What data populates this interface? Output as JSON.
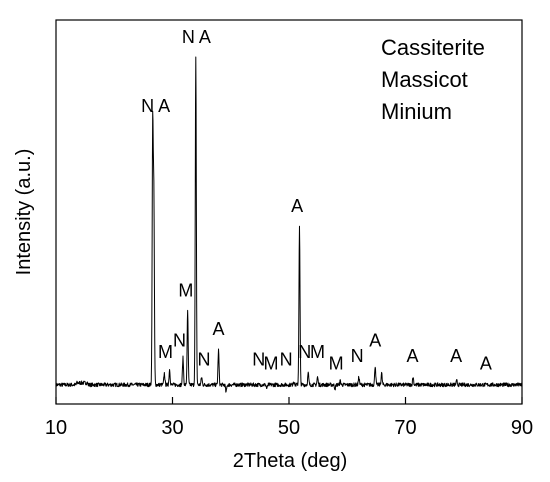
{
  "chart_data": {
    "type": "line",
    "xlabel": "2Theta (deg)",
    "ylabel": "Intensity (a.u.)",
    "xlim": [
      10,
      90
    ],
    "ylim": [
      0,
      100
    ],
    "xticks": [
      10,
      30,
      50,
      70,
      90
    ],
    "grid": false,
    "legend_position": "top-right",
    "legend_entries": [
      "Cassiterite",
      "Massicot",
      "Minium"
    ],
    "baseline": 5,
    "series": [
      {
        "name": "",
        "peaks": [
          [
            26.6,
            72
          ],
          [
            26.8,
            52
          ],
          [
            28.6,
            8
          ],
          [
            29.5,
            9
          ],
          [
            31.8,
            12
          ],
          [
            32.6,
            24
          ],
          [
            34.0,
            90
          ],
          [
            35.0,
            7
          ],
          [
            37.9,
            14
          ],
          [
            39.2,
            3
          ],
          [
            44.6,
            5
          ],
          [
            46.2,
            4
          ],
          [
            49.3,
            5
          ],
          [
            50.8,
            6
          ],
          [
            51.8,
            46
          ],
          [
            52.8,
            5
          ],
          [
            53.3,
            8
          ],
          [
            54.9,
            7
          ],
          [
            57.9,
            4
          ],
          [
            58.8,
            6
          ],
          [
            62.0,
            7
          ],
          [
            64.8,
            10
          ],
          [
            65.9,
            8
          ],
          [
            71.3,
            7
          ],
          [
            78.8,
            6
          ],
          [
            83.9,
            5
          ]
        ]
      }
    ],
    "annotations": [
      {
        "label": "N A",
        "x": 27.1,
        "y": 76
      },
      {
        "label": "N A",
        "x": 34.1,
        "y": 94
      },
      {
        "label": "M",
        "x": 28.8,
        "y": 12
      },
      {
        "label": "N",
        "x": 31.2,
        "y": 15
      },
      {
        "label": "M",
        "x": 32.3,
        "y": 28
      },
      {
        "label": "N",
        "x": 35.4,
        "y": 10
      },
      {
        "label": "A",
        "x": 37.9,
        "y": 18
      },
      {
        "label": "N",
        "x": 44.8,
        "y": 10
      },
      {
        "label": "M",
        "x": 46.9,
        "y": 9
      },
      {
        "label": "N",
        "x": 49.5,
        "y": 10
      },
      {
        "label": "A",
        "x": 51.4,
        "y": 50
      },
      {
        "label": "N",
        "x": 52.7,
        "y": 12
      },
      {
        "label": "M",
        "x": 54.9,
        "y": 12
      },
      {
        "label": "M",
        "x": 58.1,
        "y": 9
      },
      {
        "label": "N",
        "x": 61.7,
        "y": 11
      },
      {
        "label": "A",
        "x": 64.8,
        "y": 15
      },
      {
        "label": "A",
        "x": 71.2,
        "y": 11
      },
      {
        "label": "A",
        "x": 78.7,
        "y": 11
      },
      {
        "label": "A",
        "x": 83.8,
        "y": 9
      }
    ]
  }
}
